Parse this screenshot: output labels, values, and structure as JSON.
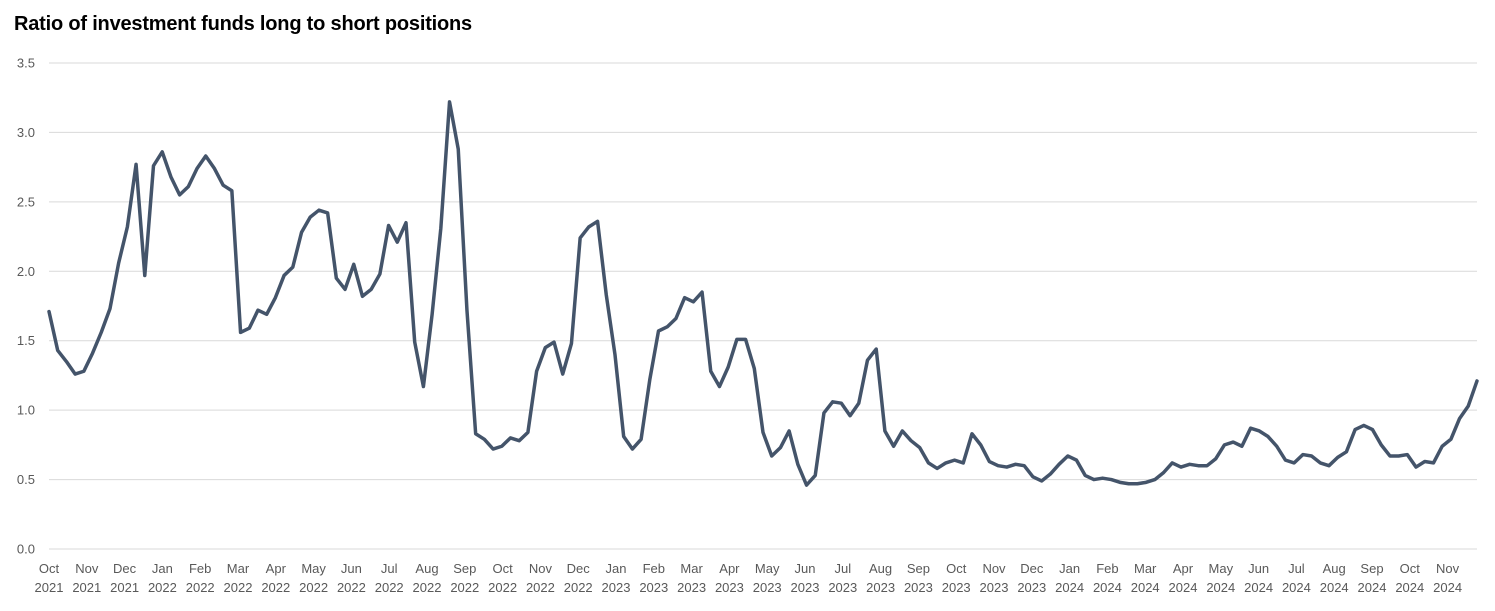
{
  "chart_data": {
    "type": "line",
    "title": "Ratio of investment funds long to short positions",
    "xlabel": "",
    "ylabel": "",
    "ylim": [
      0,
      3.5
    ],
    "yticks": [
      "0.0",
      "0.5",
      "1.0",
      "1.5",
      "2.0",
      "2.5",
      "3.0",
      "3.5"
    ],
    "grid": true,
    "legend": "none",
    "line_color": "#44546a",
    "x_tick_labels": [
      [
        "Oct",
        "2021"
      ],
      [
        "Nov",
        "2021"
      ],
      [
        "Dec",
        "2021"
      ],
      [
        "Jan",
        "2022"
      ],
      [
        "Feb",
        "2022"
      ],
      [
        "Mar",
        "2022"
      ],
      [
        "Apr",
        "2022"
      ],
      [
        "May",
        "2022"
      ],
      [
        "Jun",
        "2022"
      ],
      [
        "Jul",
        "2022"
      ],
      [
        "Aug",
        "2022"
      ],
      [
        "Sep",
        "2022"
      ],
      [
        "Oct",
        "2022"
      ],
      [
        "Nov",
        "2022"
      ],
      [
        "Dec",
        "2022"
      ],
      [
        "Jan",
        "2023"
      ],
      [
        "Feb",
        "2023"
      ],
      [
        "Mar",
        "2023"
      ],
      [
        "Apr",
        "2023"
      ],
      [
        "May",
        "2023"
      ],
      [
        "Jun",
        "2023"
      ],
      [
        "Jul",
        "2023"
      ],
      [
        "Aug",
        "2023"
      ],
      [
        "Sep",
        "2023"
      ],
      [
        "Oct",
        "2023"
      ],
      [
        "Nov",
        "2023"
      ],
      [
        "Dec",
        "2023"
      ],
      [
        "Jan",
        "2024"
      ],
      [
        "Feb",
        "2024"
      ],
      [
        "Mar",
        "2024"
      ],
      [
        "Apr",
        "2024"
      ],
      [
        "May",
        "2024"
      ],
      [
        "Jun",
        "2024"
      ],
      [
        "Jul",
        "2024"
      ],
      [
        "Aug",
        "2024"
      ],
      [
        "Sep",
        "2024"
      ],
      [
        "Oct",
        "2024"
      ],
      [
        "Nov",
        "2024"
      ]
    ],
    "series": [
      {
        "values": [
          1.71,
          1.43,
          1.35,
          1.26,
          1.28,
          1.41,
          1.56,
          1.73,
          2.06,
          2.32,
          2.77,
          1.97,
          2.76,
          2.86,
          2.68,
          2.55,
          2.61,
          2.74,
          2.83,
          2.74,
          2.62,
          2.58,
          1.56,
          1.59,
          1.72,
          1.69,
          1.81,
          1.97,
          2.03,
          2.28,
          2.39,
          2.44,
          2.42,
          1.95,
          1.87,
          2.05,
          1.82,
          1.87,
          1.98,
          2.33,
          2.21,
          2.35,
          1.49,
          1.17,
          1.69,
          2.31,
          3.22,
          2.88,
          1.72,
          0.83,
          0.79,
          0.72,
          0.74,
          0.8,
          0.78,
          0.84,
          1.28,
          1.45,
          1.49,
          1.26,
          1.48,
          2.24,
          2.32,
          2.36,
          1.83,
          1.4,
          0.81,
          0.72,
          0.79,
          1.22,
          1.57,
          1.6,
          1.66,
          1.81,
          1.78,
          1.85,
          1.28,
          1.17,
          1.31,
          1.51,
          1.51,
          1.3,
          0.84,
          0.67,
          0.73,
          0.85,
          0.61,
          0.46,
          0.53,
          0.98,
          1.06,
          1.05,
          0.96,
          1.05,
          1.36,
          1.44,
          0.85,
          0.74,
          0.85,
          0.78,
          0.73,
          0.62,
          0.58,
          0.62,
          0.64,
          0.62,
          0.83,
          0.75,
          0.63,
          0.6,
          0.59,
          0.61,
          0.6,
          0.52,
          0.49,
          0.54,
          0.61,
          0.67,
          0.64,
          0.53,
          0.5,
          0.51,
          0.5,
          0.48,
          0.47,
          0.47,
          0.48,
          0.5,
          0.55,
          0.62,
          0.59,
          0.61,
          0.6,
          0.6,
          0.65,
          0.75,
          0.77,
          0.74,
          0.87,
          0.85,
          0.81,
          0.74,
          0.64,
          0.62,
          0.68,
          0.67,
          0.62,
          0.6,
          0.66,
          0.7,
          0.86,
          0.89,
          0.86,
          0.75,
          0.67,
          0.67,
          0.68,
          0.59,
          0.63,
          0.62,
          0.74,
          0.79,
          0.94,
          1.03,
          1.21
        ]
      }
    ]
  }
}
